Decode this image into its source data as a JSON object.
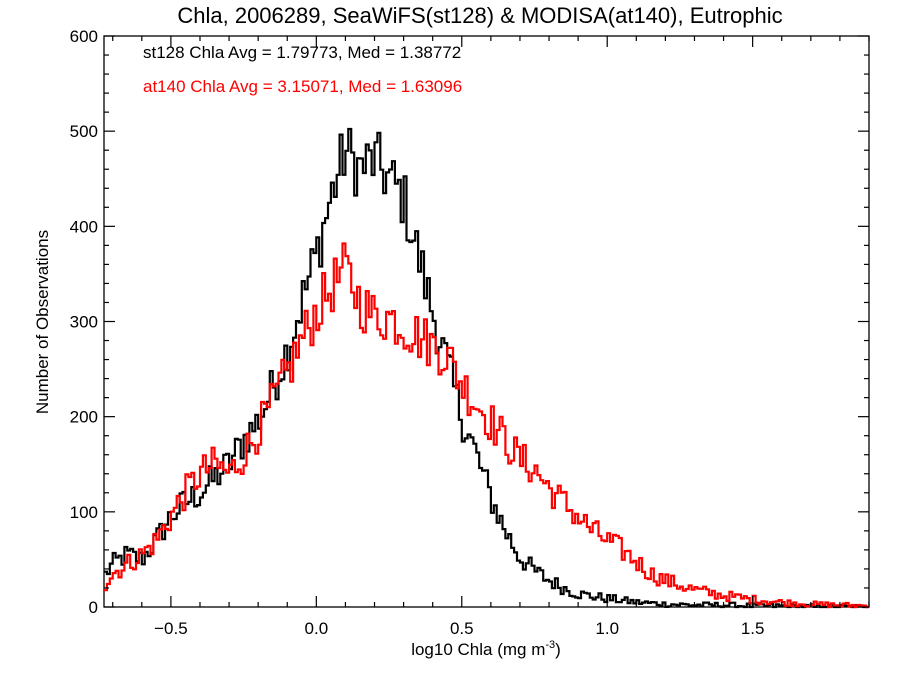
{
  "chart_data": {
    "type": "line",
    "style": "histogram-step",
    "title": "Chla, 2006289, SeaWiFS(st128) & MODISA(at140), Eutrophic",
    "xlabel": "log10 Chla (mg m",
    "xlabel_sup": "-3",
    "xlabel_end": ")",
    "ylabel": "Number of Observations",
    "xlim": [
      -0.73,
      1.9
    ],
    "ylim": [
      0,
      600
    ],
    "xticks": [
      -0.5,
      0.0,
      0.5,
      1.0,
      1.5
    ],
    "xtick_labels": [
      "−0.5",
      "0.0",
      "0.5",
      "1.0",
      "1.5"
    ],
    "yticks": [
      0,
      100,
      200,
      300,
      400,
      500,
      600
    ],
    "ytick_labels": [
      "0",
      "100",
      "200",
      "300",
      "400",
      "500",
      "600"
    ],
    "grid": false,
    "annotations": [
      {
        "text": "st128 Chla Avg = 1.79773, Med = 1.38772",
        "color": "#000000"
      },
      {
        "text": "at140 Chla Avg = 3.15071, Med = 1.63096",
        "color": "#ff0000"
      }
    ],
    "series": [
      {
        "color": "#000000",
        "x": [
          -0.73,
          -0.7,
          -0.65,
          -0.6,
          -0.55,
          -0.5,
          -0.45,
          -0.4,
          -0.35,
          -0.3,
          -0.25,
          -0.2,
          -0.15,
          -0.1,
          -0.05,
          0.0,
          0.05,
          0.1,
          0.15,
          0.2,
          0.25,
          0.3,
          0.35,
          0.4,
          0.45,
          0.5,
          0.55,
          0.6,
          0.65,
          0.7,
          0.75,
          0.8,
          0.85,
          0.9,
          0.95,
          1.0,
          1.05,
          1.1,
          1.15,
          1.2,
          1.3,
          1.4,
          1.5,
          1.6,
          1.7,
          1.8,
          1.9
        ],
        "values": [
          32,
          45,
          55,
          50,
          70,
          95,
          110,
          120,
          135,
          150,
          175,
          195,
          230,
          270,
          320,
          370,
          430,
          480,
          460,
          470,
          450,
          430,
          370,
          310,
          255,
          200,
          160,
          115,
          80,
          52,
          38,
          28,
          20,
          14,
          11,
          9,
          7,
          5,
          4,
          3,
          2,
          2,
          1,
          1,
          0,
          0,
          0
        ]
      },
      {
        "color": "#ff0000",
        "x": [
          -0.73,
          -0.7,
          -0.65,
          -0.6,
          -0.55,
          -0.5,
          -0.45,
          -0.4,
          -0.35,
          -0.3,
          -0.25,
          -0.2,
          -0.15,
          -0.1,
          -0.05,
          0.0,
          0.05,
          0.1,
          0.15,
          0.2,
          0.25,
          0.3,
          0.35,
          0.4,
          0.45,
          0.5,
          0.55,
          0.6,
          0.65,
          0.7,
          0.75,
          0.8,
          0.85,
          0.9,
          0.95,
          1.0,
          1.05,
          1.1,
          1.15,
          1.2,
          1.3,
          1.4,
          1.5,
          1.6,
          1.7,
          1.8,
          1.9
        ],
        "values": [
          22,
          35,
          45,
          55,
          70,
          95,
          120,
          140,
          150,
          140,
          160,
          185,
          215,
          245,
          280,
          310,
          335,
          355,
          320,
          305,
          305,
          295,
          285,
          275,
          265,
          235,
          215,
          195,
          175,
          155,
          145,
          125,
          110,
          95,
          80,
          70,
          60,
          48,
          35,
          28,
          18,
          12,
          8,
          5,
          3,
          2,
          1
        ]
      }
    ]
  }
}
